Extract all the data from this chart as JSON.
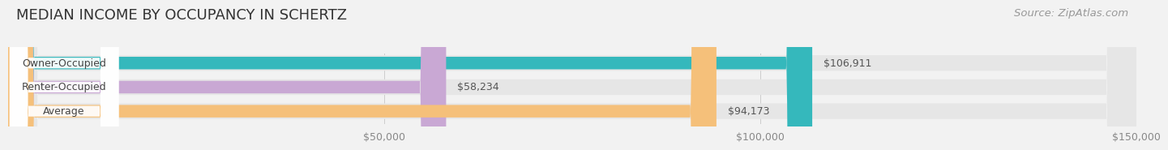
{
  "title": "MEDIAN INCOME BY OCCUPANCY IN SCHERTZ",
  "source": "Source: ZipAtlas.com",
  "categories": [
    "Owner-Occupied",
    "Renter-Occupied",
    "Average"
  ],
  "values": [
    106911,
    58234,
    94173
  ],
  "bar_colors": [
    "#35b8bc",
    "#c9a8d4",
    "#f5c07a"
  ],
  "bar_labels": [
    "$106,911",
    "$58,234",
    "$94,173"
  ],
  "xlim": [
    0,
    150000
  ],
  "xticks": [
    50000,
    100000,
    150000
  ],
  "xticklabels": [
    "$50,000",
    "$100,000",
    "$150,000"
  ],
  "background_color": "#f2f2f2",
  "bar_bg_color": "#e6e6e6",
  "label_bg_color": "#ffffff",
  "title_fontsize": 13,
  "source_fontsize": 9.5,
  "label_fontsize": 9,
  "value_fontsize": 9,
  "tick_fontsize": 9
}
